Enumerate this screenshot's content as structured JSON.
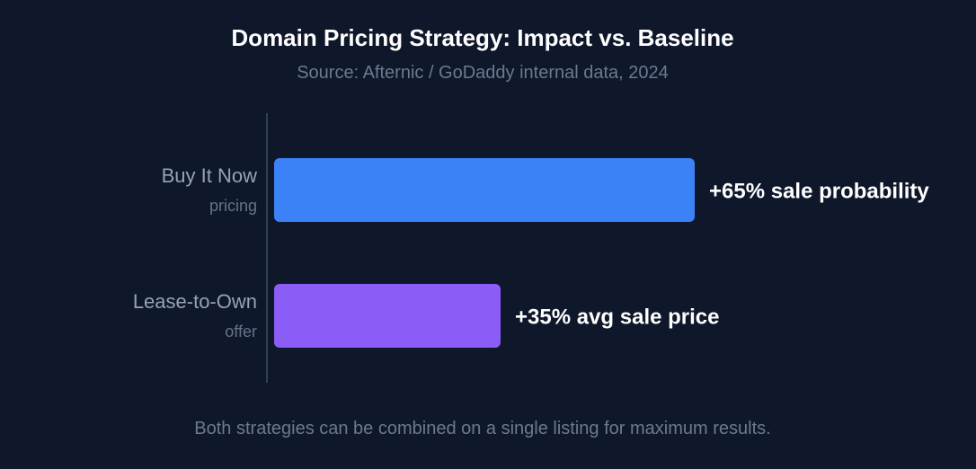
{
  "chart_data": {
    "type": "bar",
    "orientation": "horizontal",
    "title": "Domain Pricing Strategy: Impact vs. Baseline",
    "subtitle": "Source: Afternic / GoDaddy internal data, 2024",
    "footnote": "Both strategies can be combined on a single listing for maximum results.",
    "categories": [
      {
        "label": "Buy It Now",
        "sublabel": "pricing"
      },
      {
        "label": "Lease-to-Own",
        "sublabel": "offer"
      }
    ],
    "values": [
      65,
      35
    ],
    "value_labels": [
      "+65% sale probability",
      "+35% avg sale price"
    ],
    "colors": [
      "#3b82f6",
      "#8b5cf6"
    ],
    "xlim": [
      0,
      65
    ],
    "grid": false,
    "legend": "none"
  }
}
